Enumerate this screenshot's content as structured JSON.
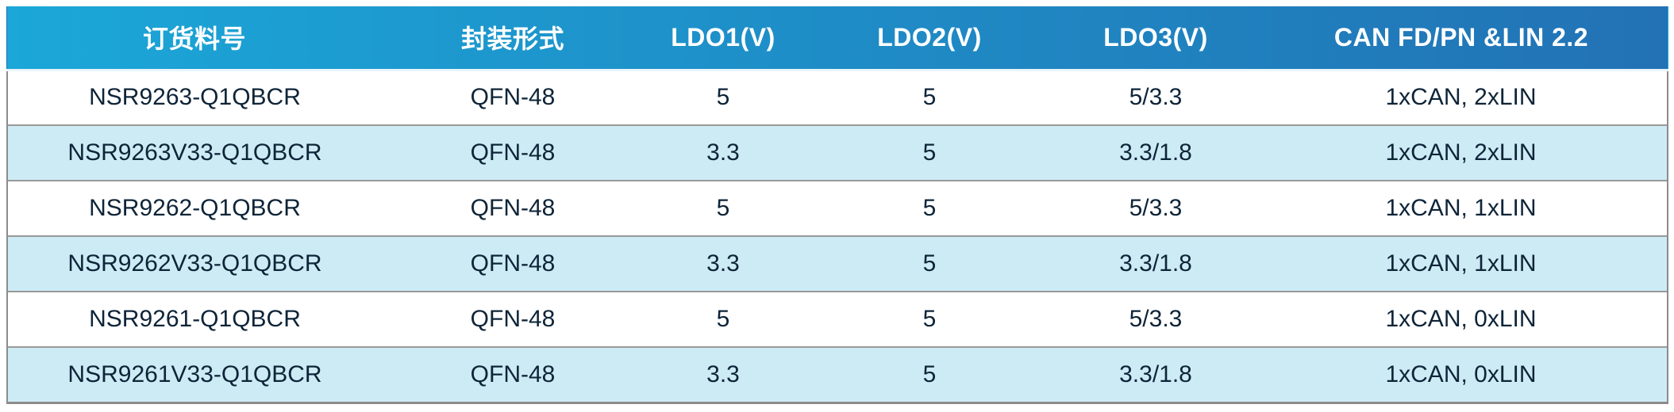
{
  "table": {
    "headers": [
      "订货料号",
      "封装形式",
      "LDO1(V)",
      "LDO2(V)",
      "LDO3(V)",
      "CAN FD/PN &LIN 2.2"
    ],
    "header_names": [
      "part-number",
      "package-type",
      "ldo1-voltage",
      "ldo2-voltage",
      "ldo3-voltage",
      "can-lin-config"
    ],
    "rows": [
      [
        "NSR9263-Q1QBCR",
        "QFN-48",
        "5",
        "5",
        "5/3.3",
        "1xCAN, 2xLIN"
      ],
      [
        "NSR9263V33-Q1QBCR",
        "QFN-48",
        "3.3",
        "5",
        "3.3/1.8",
        "1xCAN, 2xLIN"
      ],
      [
        "NSR9262-Q1QBCR",
        "QFN-48",
        "5",
        "5",
        "5/3.3",
        "1xCAN, 1xLIN"
      ],
      [
        "NSR9262V33-Q1QBCR",
        "QFN-48",
        "3.3",
        "5",
        "3.3/1.8",
        "1xCAN, 1xLIN"
      ],
      [
        "NSR9261-Q1QBCR",
        "QFN-48",
        "5",
        "5",
        "5/3.3",
        "1xCAN, 0xLIN"
      ],
      [
        "NSR9261V33-Q1QBCR",
        "QFN-48",
        "3.3",
        "5",
        "3.3/1.8",
        "1xCAN, 0xLIN"
      ]
    ]
  },
  "colors": {
    "header_gradient_start": "#1BA7D8",
    "header_gradient_end": "#2272B5",
    "row_alt": "#CDEBF5",
    "row_base": "#FFFFFF",
    "text": "#0E2438",
    "header_text": "#FFFFFF",
    "row_divider": "#999999",
    "outer_border": "#8C8C8C"
  }
}
